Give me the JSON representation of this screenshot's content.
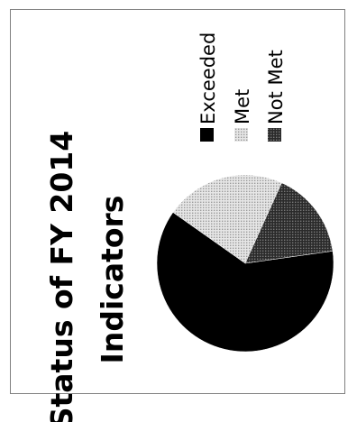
{
  "chart_data": {
    "type": "pie",
    "title_lines": [
      "Status of FY 2014",
      "Indicators"
    ],
    "slices": [
      {
        "label": "Exceeded",
        "value": 62,
        "color": "#000000",
        "pattern": "solid"
      },
      {
        "label": "Met",
        "value": 22,
        "color": "#cccccc",
        "pattern": "light-dots"
      },
      {
        "label": "Not Met",
        "value": 16,
        "color": "#333333",
        "pattern": "dark-grid"
      }
    ],
    "legend_placement": "right",
    "orientation": "rotated-90-counterclockwise"
  }
}
